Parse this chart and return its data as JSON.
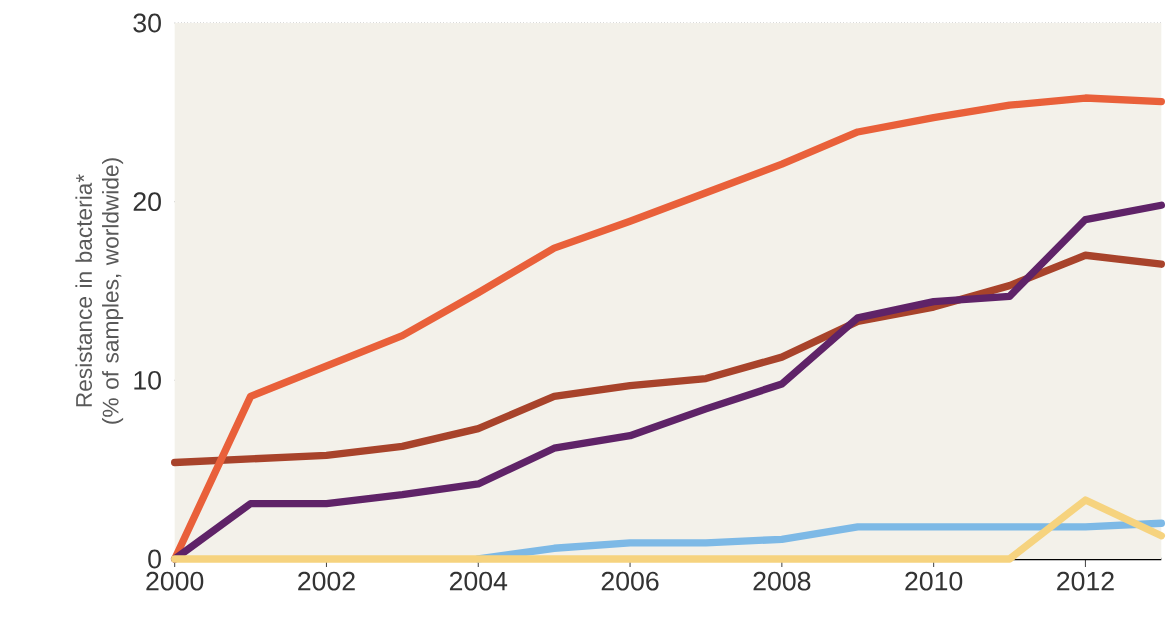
{
  "chart_data": {
    "type": "line",
    "ylabel": "Resistance in bacteria* (% of samples, worldwide)",
    "x": [
      2000,
      2001,
      2002,
      2003,
      2004,
      2005,
      2006,
      2007,
      2008,
      2009,
      2010,
      2011,
      2012,
      2013
    ],
    "series": [
      {
        "color": "#a8432b",
        "values": [
          5.4,
          5.6,
          5.8,
          6.3,
          7.3,
          9.1,
          9.7,
          10.1,
          11.3,
          13.3,
          14.1,
          15.3,
          17.0,
          16.5
        ]
      },
      {
        "color": "#e9603a",
        "values": [
          0,
          9.1,
          10.8,
          12.5,
          14.9,
          17.4,
          18.9,
          20.5,
          22.1,
          23.9,
          24.7,
          25.4,
          25.8,
          25.6
        ]
      },
      {
        "color": "#5f2368",
        "values": [
          0,
          3.1,
          3.1,
          3.6,
          4.2,
          6.2,
          6.9,
          8.4,
          9.8,
          13.5,
          14.4,
          14.7,
          19.0,
          19.8
        ]
      },
      {
        "color": "#7db9e6",
        "values": [
          null,
          null,
          null,
          null,
          0,
          0.6,
          0.9,
          0.9,
          1.1,
          1.8,
          1.8,
          1.8,
          1.8,
          2.0
        ]
      },
      {
        "color": "#f6d37f",
        "values": [
          0,
          0,
          0,
          0,
          0,
          0,
          0,
          0,
          0,
          0,
          0,
          0,
          3.3,
          1.3
        ]
      }
    ],
    "xlim": [
      2000,
      2013
    ],
    "ylim": [
      0,
      30
    ],
    "xticks": [
      2000,
      2002,
      2004,
      2006,
      2008,
      2010,
      2012
    ],
    "yticks": [
      0,
      10,
      20,
      30
    ],
    "grid": "y",
    "marker": "none",
    "line_style": "solid"
  }
}
